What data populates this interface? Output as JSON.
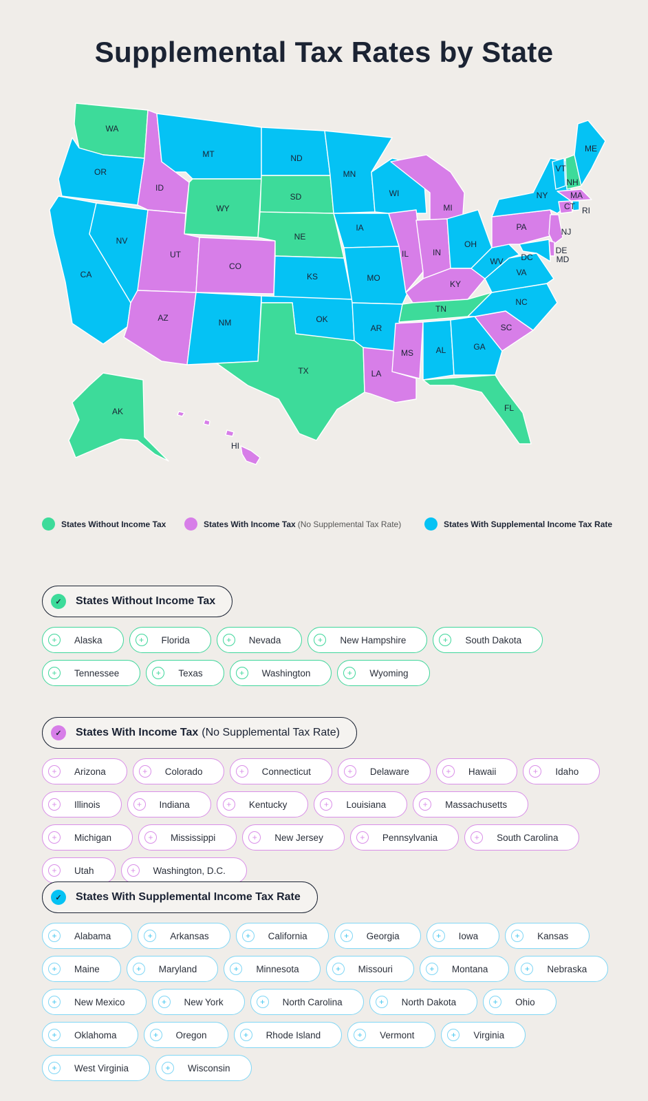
{
  "title": "Supplemental Tax Rates by State",
  "colors": {
    "no_income_tax": "#3ddb9a",
    "income_tax_no_supp": "#d77ee8",
    "supplemental": "#05c2f4"
  },
  "map": {
    "labels": {
      "WA": "WA",
      "OR": "OR",
      "CA": "CA",
      "NV": "NV",
      "ID": "ID",
      "MT": "MT",
      "WY": "WY",
      "UT": "UT",
      "AZ": "AZ",
      "CO": "CO",
      "NM": "NM",
      "ND": "ND",
      "SD": "SD",
      "NE": "NE",
      "KS": "KS",
      "OK": "OK",
      "TX": "TX",
      "MN": "MN",
      "IA": "IA",
      "MO": "MO",
      "AR": "AR",
      "LA": "LA",
      "WI": "WI",
      "IL": "IL",
      "MI": "MI",
      "IN": "IN",
      "OH": "OH",
      "KY": "KY",
      "TN": "TN",
      "MS": "MS",
      "AL": "AL",
      "GA": "GA",
      "FL": "FL",
      "SC": "SC",
      "NC": "NC",
      "VA": "VA",
      "WV": "WV",
      "PA": "PA",
      "NY": "NY",
      "VT": "VT",
      "NH": "NH",
      "ME": "ME",
      "MA": "MA",
      "CT": "CT",
      "RI": "RI",
      "NJ": "NJ",
      "DE": "DE",
      "MD": "MD",
      "DC": "DC",
      "AK": "AK",
      "HI": "HI"
    }
  },
  "legend": {
    "no_income_tax": "States Without Income Tax",
    "income_tax": "States With Income Tax",
    "income_tax_note": "(No Supplemental Tax Rate)",
    "supplemental": "States With Supplemental Income Tax Rate"
  },
  "sections": {
    "no_income_tax": {
      "heading": "States Without Income Tax",
      "states": [
        "Alaska",
        "Florida",
        "Nevada",
        "New Hampshire",
        "South Dakota",
        "Tennessee",
        "Texas",
        "Washington",
        "Wyoming"
      ]
    },
    "income_tax": {
      "heading": "States With Income Tax",
      "note": "(No Supplemental Tax Rate)",
      "states": [
        "Arizona",
        "Colorado",
        "Connecticut",
        "Delaware",
        "Hawaii",
        "Idaho",
        "Illinois",
        "Indiana",
        "Kentucky",
        "Louisiana",
        "Massachusetts",
        "Michigan",
        "Mississippi",
        "New Jersey",
        "Pennsylvania",
        "South Carolina",
        "Utah",
        "Washington, D.C."
      ]
    },
    "supplemental": {
      "heading": "States With Supplemental Income Tax Rate",
      "states": [
        "Alabama",
        "Arkansas",
        "California",
        "Georgia",
        "Iowa",
        "Kansas",
        "Maine",
        "Maryland",
        "Minnesota",
        "Missouri",
        "Montana",
        "Nebraska",
        "New Mexico",
        "New York",
        "North Carolina",
        "North Dakota",
        "Ohio",
        "Oklahoma",
        "Oregon",
        "Rhode Island",
        "Vermont",
        "Virginia",
        "West Virginia",
        "Wisconsin"
      ]
    }
  }
}
